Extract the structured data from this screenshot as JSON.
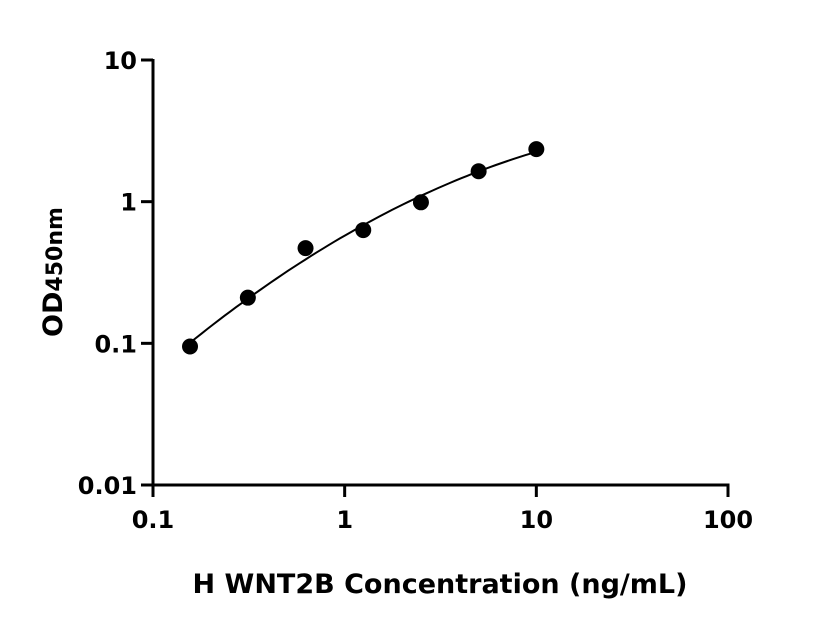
{
  "chart_data": {
    "type": "scatter",
    "title": "",
    "xlabel": "H WNT2B Concentration (ng/mL)",
    "ylabel_main": "OD",
    "ylabel_sub": "450nm",
    "xscale": "log",
    "yscale": "log",
    "xlim": [
      0.1,
      100
    ],
    "ylim": [
      0.01,
      10
    ],
    "xticks": [
      "0.1",
      "1",
      "10",
      "100"
    ],
    "yticks": [
      "0.01",
      "0.1",
      "1",
      "10"
    ],
    "grid": false,
    "legend": "none",
    "x": [
      0.156,
      0.3125,
      0.625,
      1.25,
      2.5,
      5,
      10
    ],
    "y": [
      0.095,
      0.21,
      0.47,
      0.63,
      0.99,
      1.64,
      2.35
    ],
    "fit_curve": true,
    "colors": {
      "points": "#000000",
      "curve": "#000000"
    }
  }
}
